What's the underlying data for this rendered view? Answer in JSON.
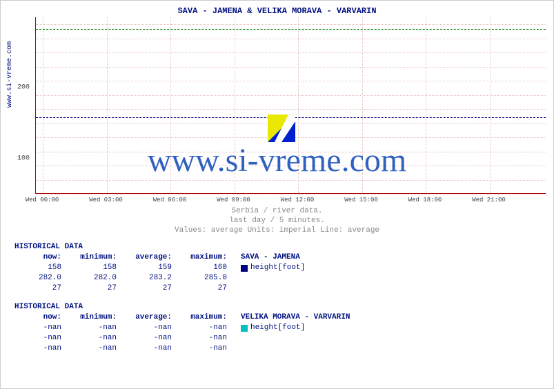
{
  "chart": {
    "title": "SAVA -  JAMENA &  VELIKA MORAVA -  VARVARIN",
    "y_axis_label": "www.si-vreme.com",
    "watermark": "www.si-vreme.com",
    "background_color": "#ffffff",
    "grid_color": "#e8c0c0",
    "axis_color": "#aa0000",
    "title_color": "#001080",
    "watermark_color": "#3060c0",
    "logo_colors": {
      "yellow": "#e8e800",
      "blue": "#0020d0",
      "white": "#ffffff"
    },
    "y": {
      "min": 50,
      "max": 300,
      "ticks": [
        100,
        200
      ],
      "minor_step": 20
    },
    "x": {
      "labels": [
        "Wed 00:00",
        "Wed 03:00",
        "Wed 06:00",
        "Wed 09:00",
        "Wed 12:00",
        "Wed 15:00",
        "Wed 18:00",
        "Wed 21:00"
      ]
    },
    "series": [
      {
        "name": "SAVA - JAMENA",
        "color": "#000080",
        "value": 158,
        "dash": "dashed"
      },
      {
        "name": "VELIKA MORAVA - VARVARIN",
        "color": "#008000",
        "value": 283,
        "dash": "dashed"
      }
    ]
  },
  "caption": {
    "line1": "Serbia / river data.",
    "line2": "last day / 5 minutes.",
    "line3": "Values: average  Units: imperial  Line: average"
  },
  "tables": [
    {
      "title": "HISTORICAL DATA",
      "headers": [
        "now:",
        "minimum:",
        "average:",
        "maximum:"
      ],
      "legend_label": "SAVA -  JAMENA",
      "legend_color": "#000080",
      "unit_label": "height[foot]",
      "rows": [
        [
          "158",
          "158",
          "159",
          "160"
        ],
        [
          "282.0",
          "282.0",
          "283.2",
          "285.0"
        ],
        [
          "27",
          "27",
          "27",
          "27"
        ]
      ]
    },
    {
      "title": "HISTORICAL DATA",
      "headers": [
        "now:",
        "minimum:",
        "average:",
        "maximum:"
      ],
      "legend_label": "VELIKA MORAVA -  VARVARIN",
      "legend_color": "#00c0c0",
      "unit_label": "height[foot]",
      "rows": [
        [
          "-nan",
          "-nan",
          "-nan",
          "-nan"
        ],
        [
          "-nan",
          "-nan",
          "-nan",
          "-nan"
        ],
        [
          "-nan",
          "-nan",
          "-nan",
          "-nan"
        ]
      ]
    }
  ]
}
